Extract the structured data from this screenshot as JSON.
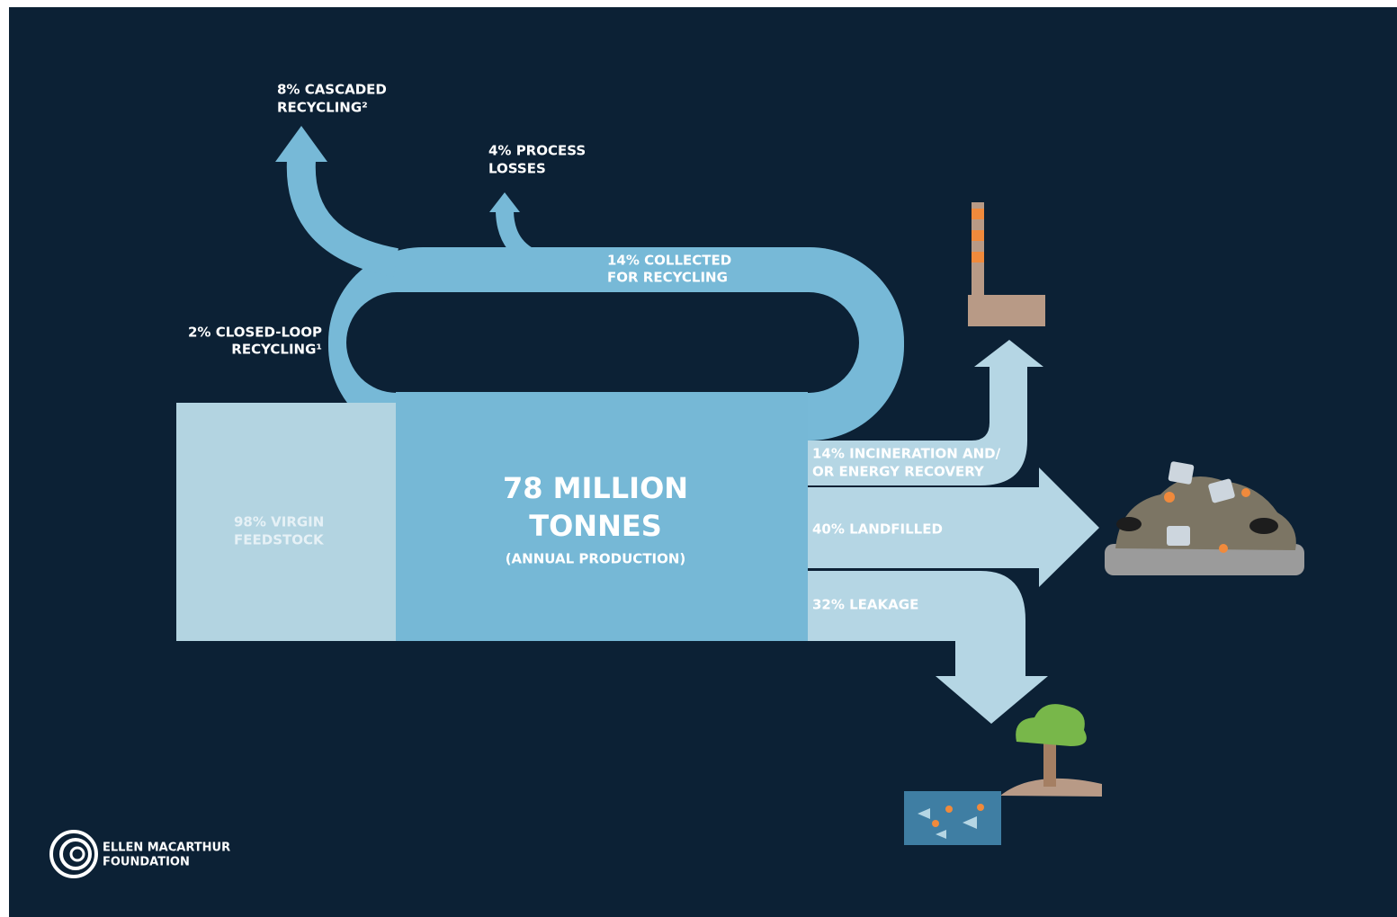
{
  "flows": {
    "cascaded_recycling": [
      "8% CASCADED",
      "RECYCLING²"
    ],
    "process_losses": [
      "4% PROCESS",
      "LOSSES"
    ],
    "collected_for_recycling": [
      "14% COLLECTED",
      "FOR RECYCLING"
    ],
    "closed_loop_recycling": [
      "2% CLOSED-LOOP",
      "RECYCLING¹"
    ],
    "virgin_feedstock": [
      "98% VIRGIN",
      "FEEDSTOCK"
    ],
    "incineration": [
      "14% INCINERATION AND/",
      "OR ENERGY RECOVERY"
    ],
    "landfilled": "40% LANDFILLED",
    "leakage": "32% LEAKAGE"
  },
  "production": {
    "amount": [
      "78 MILLION",
      "TONNES"
    ],
    "note": "(ANNUAL PRODUCTION)"
  },
  "logo": [
    "ELLEN MACARTHUR",
    "FOUNDATION"
  ]
}
